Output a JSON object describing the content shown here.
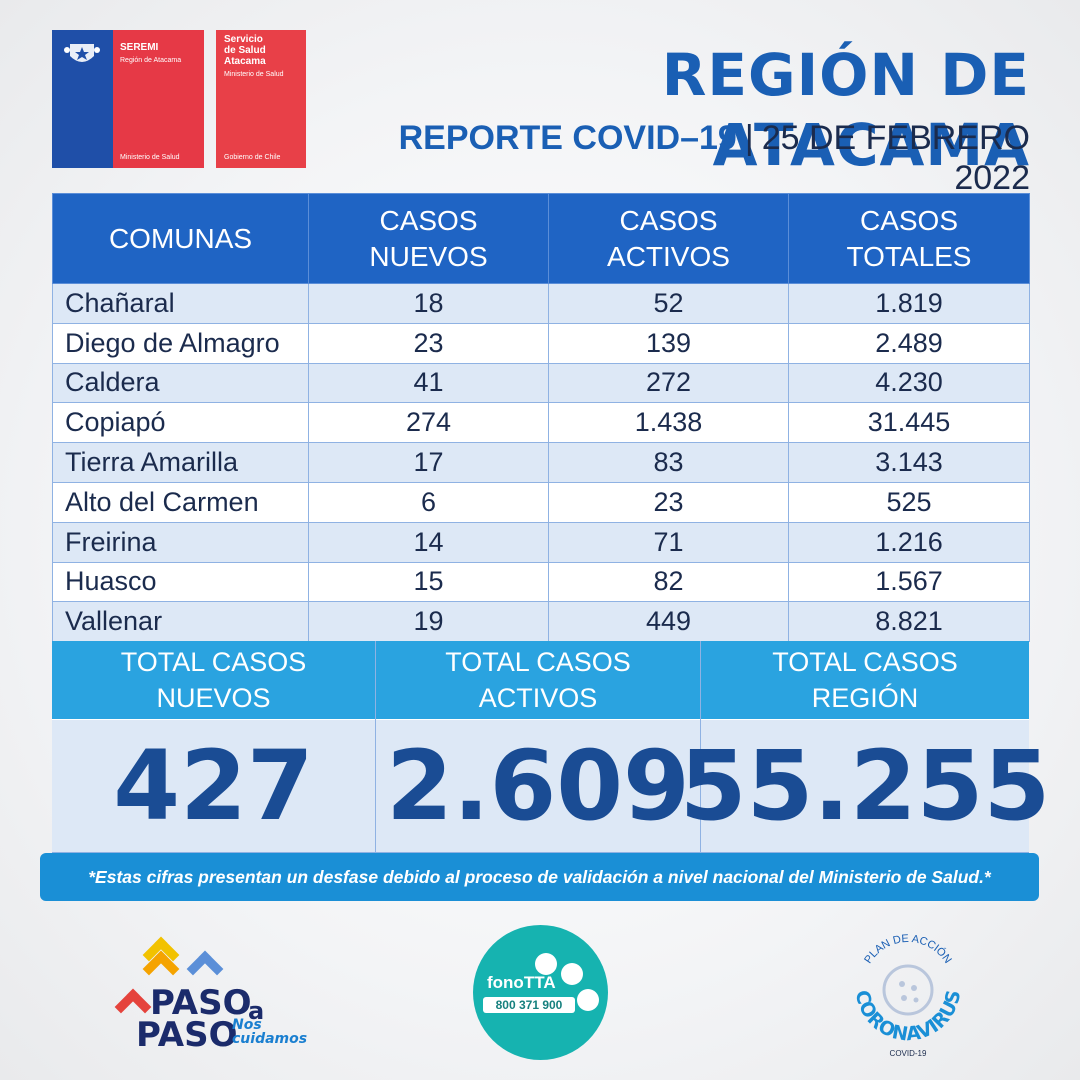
{
  "logos": {
    "seremi": {
      "title": "SEREMI",
      "region": "Región de Atacama",
      "ministry": "Ministerio de Salud"
    },
    "servicio": {
      "title_line1": "Servicio",
      "title_line2": "de Salud",
      "title_line3": "Atacama",
      "ministry": "Ministerio de Salud",
      "government": "Gobierno de Chile"
    }
  },
  "header": {
    "title": "REGIÓN DE ATACAMA",
    "subtitle_bold": "REPORTE COVID–19",
    "separator": "|",
    "date": "25 DE FEBRERO 2022"
  },
  "table": {
    "headers": {
      "comunas": "COMUNAS",
      "nuevos_1": "CASOS",
      "nuevos_2": "NUEVOS",
      "activos_1": "CASOS",
      "activos_2": "ACTIVOS",
      "totales_1": "CASOS",
      "totales_2": "TOTALES"
    },
    "rows": [
      {
        "comuna": "Chañaral",
        "nuevos": "18",
        "activos": "52",
        "totales": "1.819"
      },
      {
        "comuna": "Diego de Almagro",
        "nuevos": "23",
        "activos": "139",
        "totales": "2.489"
      },
      {
        "comuna": "Caldera",
        "nuevos": "41",
        "activos": "272",
        "totales": "4.230"
      },
      {
        "comuna": "Copiapó",
        "nuevos": "274",
        "activos": "1.438",
        "totales": "31.445"
      },
      {
        "comuna": "Tierra Amarilla",
        "nuevos": "17",
        "activos": "83",
        "totales": "3.143"
      },
      {
        "comuna": "Alto del Carmen",
        "nuevos": "6",
        "activos": "23",
        "totales": "525"
      },
      {
        "comuna": "Freirina",
        "nuevos": "14",
        "activos": "71",
        "totales": "1.216"
      },
      {
        "comuna": "Huasco",
        "nuevos": "15",
        "activos": "82",
        "totales": "1.567"
      },
      {
        "comuna": "Vallenar",
        "nuevos": "19",
        "activos": "449",
        "totales": "8.821"
      }
    ]
  },
  "totals": [
    {
      "label_1": "TOTAL CASOS",
      "label_2": "NUEVOS",
      "value": "427"
    },
    {
      "label_1": "TOTAL CASOS",
      "label_2": "ACTIVOS",
      "value": "2.609"
    },
    {
      "label_1": "TOTAL CASOS",
      "label_2": "REGIÓN",
      "value": "55.255"
    }
  ],
  "note": "*Estas cifras presentan un desfase debido al proceso de validación a nivel nacional del Ministerio de Salud.*",
  "footer": {
    "paso": {
      "word1": "PASO",
      "a": "a",
      "word2": "PASO",
      "tag1": "Nos",
      "tag2": "cuidamos"
    },
    "fono": {
      "name": "fonoTTA",
      "number": "800 371 900"
    },
    "corona": {
      "top": "PLAN DE ACCIÓN",
      "main": "CORONAVIRUS",
      "bottom": "COVID-19"
    }
  },
  "colors": {
    "brand_blue": "#1a5fb4",
    "header_blue": "#1f64c4",
    "totals_blue": "#2aa3e0",
    "red": "#e84048",
    "teal": "#16b3b0"
  }
}
